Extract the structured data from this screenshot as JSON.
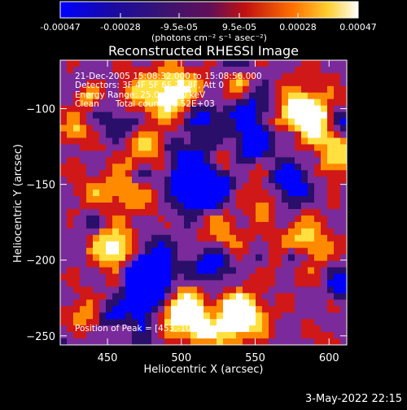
{
  "colorbar": {
    "tick_labels": [
      "-0.00047",
      "-0.00028",
      "-9.5e-05",
      "9.5e-05",
      "0.00028",
      "0.00047"
    ],
    "tick_values": [
      -0.00047,
      -0.00028,
      -9.5e-05,
      9.5e-05,
      0.00028,
      0.00047
    ],
    "range": [
      -0.00047,
      0.00047
    ],
    "unit_label": "(photons cm⁻² s⁻¹ asec⁻²)"
  },
  "chart_data": {
    "type": "heatmap",
    "title": "Reconstructed RHESSI Image",
    "xlabel": "Heliocentric X (arcsec)",
    "ylabel": "Heliocentric Y (arcsec)",
    "xlim": [
      418,
      612
    ],
    "ylim": [
      -256,
      -68
    ],
    "xticks": [
      450,
      500,
      550,
      600
    ],
    "yticks": [
      -100,
      -150,
      -200,
      -250
    ],
    "xtick_labels": [
      "450",
      "500",
      "550",
      "600"
    ],
    "ytick_labels": [
      "−100",
      "−150",
      "−200",
      "−250"
    ],
    "peak": [
      453,
      -103
    ],
    "colormap": [
      "#0000ff",
      "#2a0f6a",
      "#7a2a9a",
      "#d01818",
      "#ff8a00",
      "#ffe040",
      "#ffffff"
    ]
  },
  "info": {
    "time_range": "21-Dec-2005 15:08:32.000 to 15:08:56.000",
    "detectors": "Detectors: 3F 4F 5F 6F 7F 8F, Att 0",
    "energy": "Energy Range: 25.0 - 50.0 keV",
    "clean": "Clean      Total counts: 6.52E+03",
    "peak_position": "Position of Peak = [453,-103]"
  },
  "footer": {
    "date": "3-May-2022 22:15"
  }
}
